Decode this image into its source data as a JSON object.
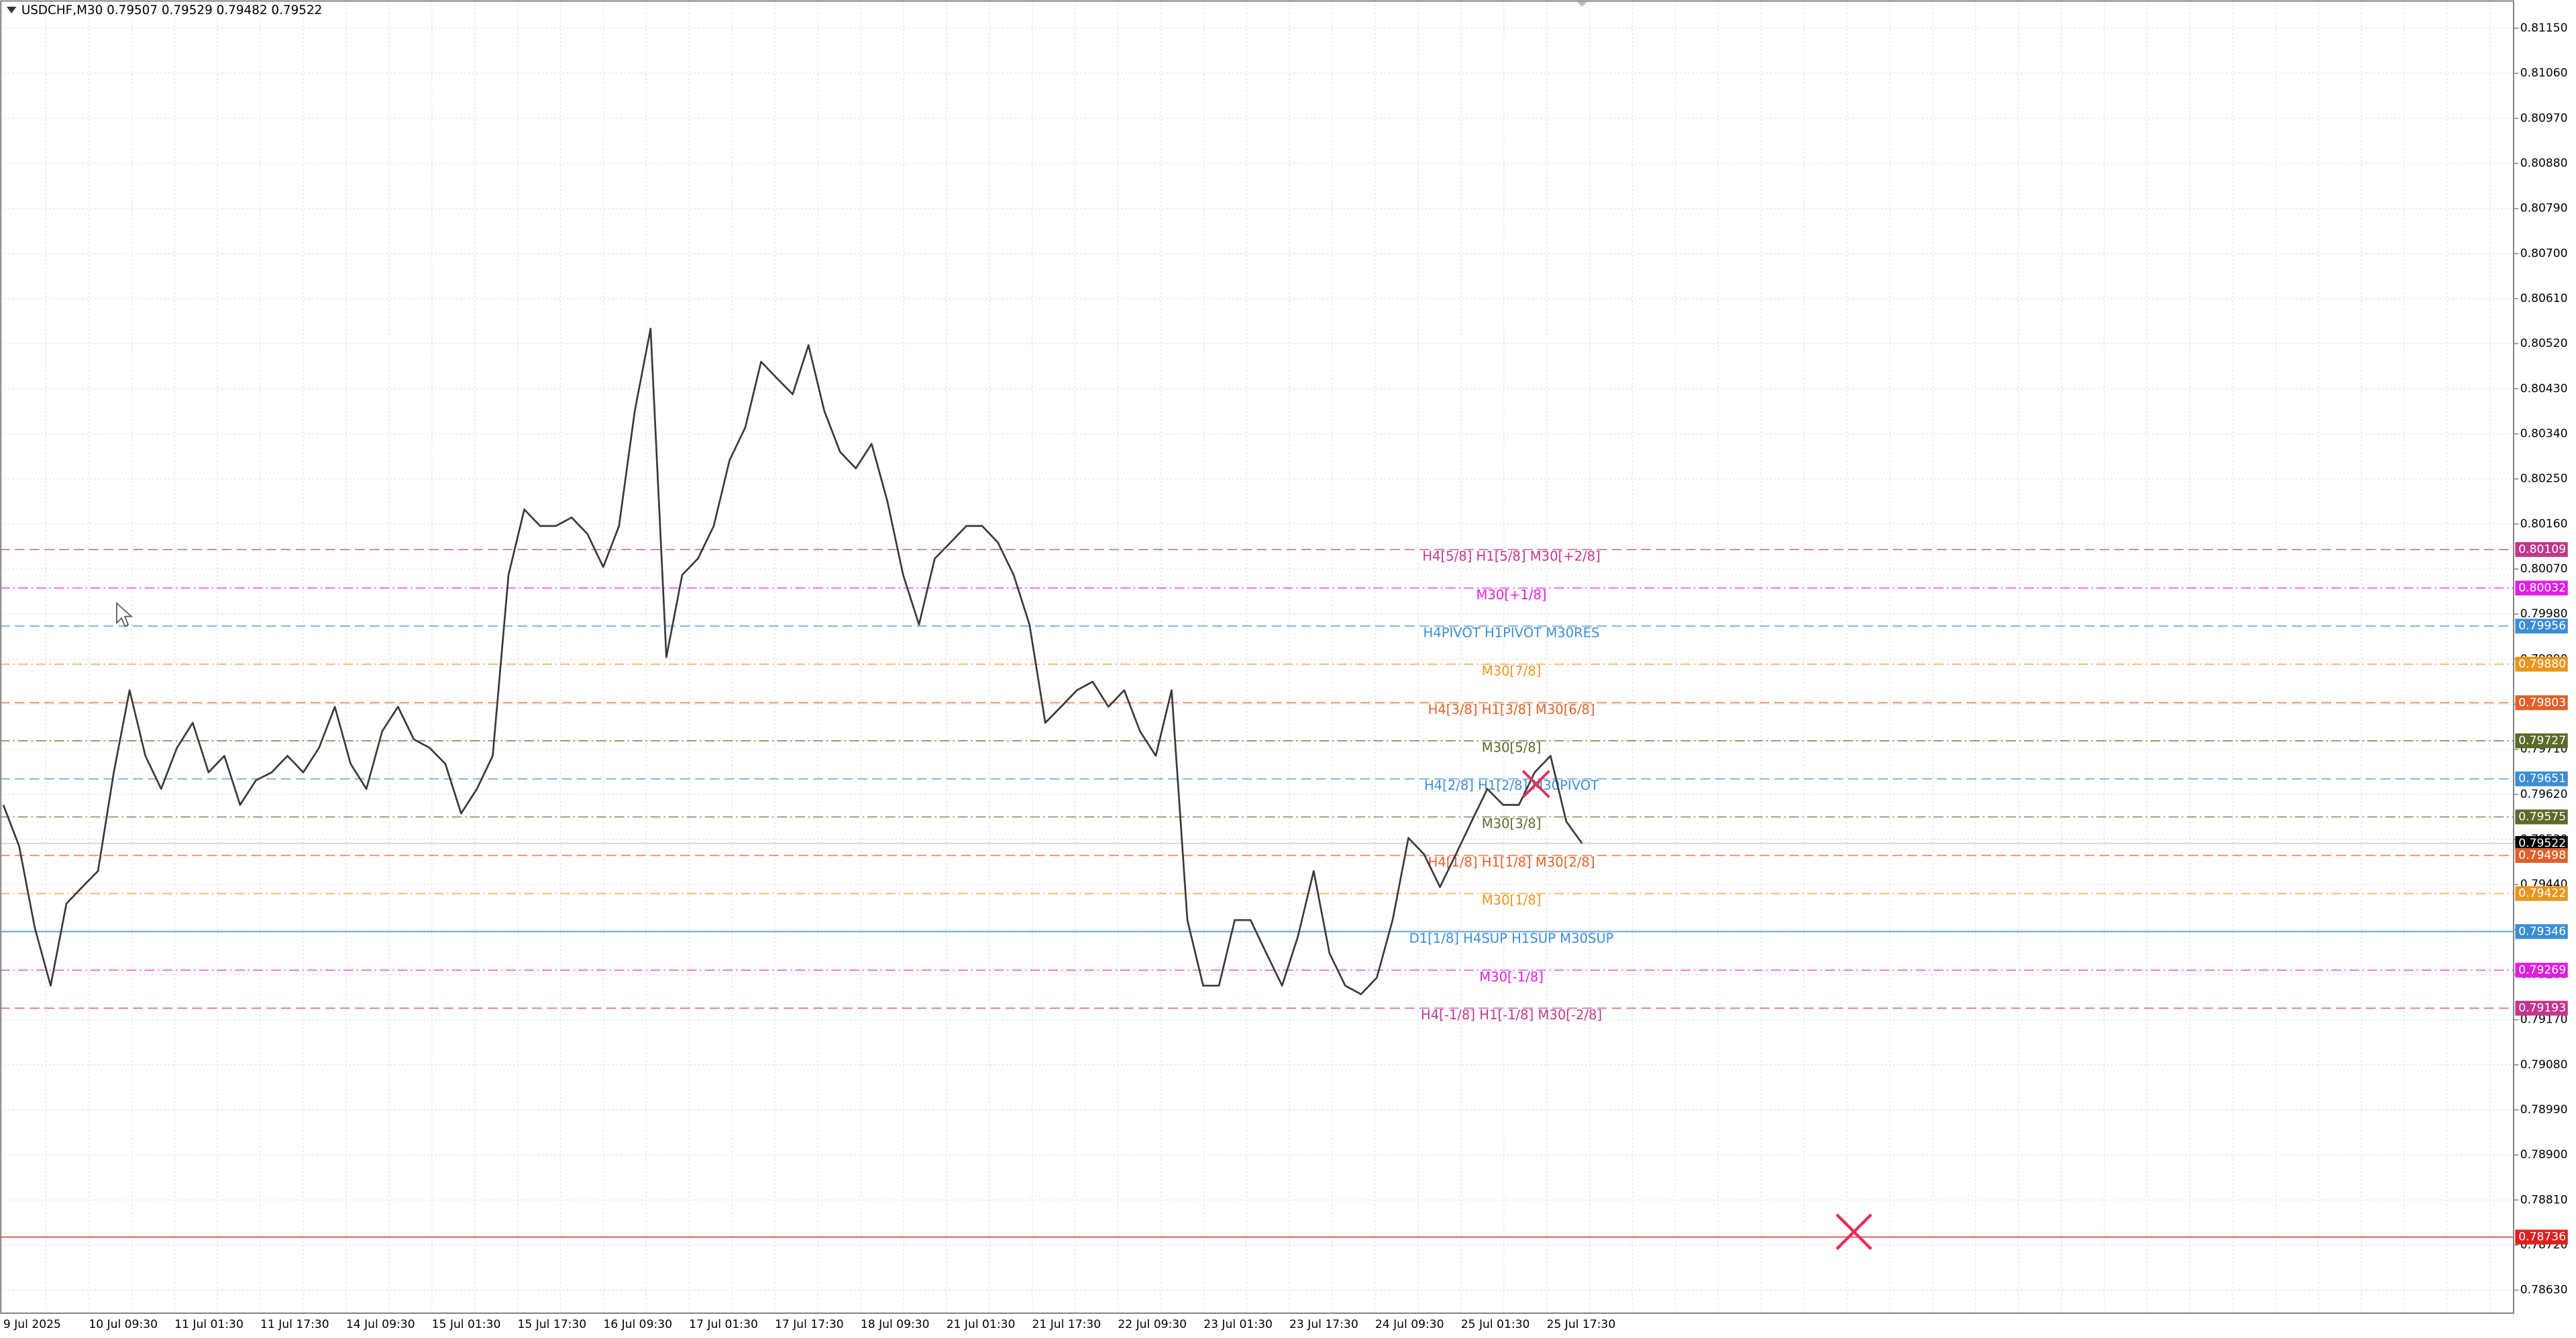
{
  "chart_data": {
    "type": "line",
    "title": "USDCHF,M30  0.79507 0.79529 0.79482 0.79522",
    "series": [
      {
        "name": "USDCHF",
        "color": "#3a3a3a",
        "values": [
          0.79599,
          0.79517,
          0.79353,
          0.79238,
          0.79402,
          0.79435,
          0.79467,
          0.79664,
          0.79828,
          0.79697,
          0.79631,
          0.79713,
          0.79763,
          0.79664,
          0.79697,
          0.79599,
          0.79648,
          0.79664,
          0.79697,
          0.79664,
          0.79713,
          0.79795,
          0.79681,
          0.79631,
          0.79746,
          0.79795,
          0.7973,
          0.79713,
          0.79681,
          0.79582,
          0.79631,
          0.79697,
          0.80058,
          0.80189,
          0.80156,
          0.80156,
          0.80173,
          0.8014,
          0.80074,
          0.80156,
          0.80386,
          0.8055,
          0.79894,
          0.80058,
          0.80091,
          0.80156,
          0.80287,
          0.80353,
          0.80484,
          0.80451,
          0.80419,
          0.80517,
          0.80386,
          0.80304,
          0.80271,
          0.8032,
          0.80205,
          0.80058,
          0.79959,
          0.80091,
          0.80123,
          0.80156,
          0.80156,
          0.80123,
          0.80058,
          0.79959,
          0.79763,
          0.79795,
          0.79828,
          0.79845,
          0.79795,
          0.79828,
          0.79746,
          0.79697,
          0.79828,
          0.79369,
          0.79238,
          0.79238,
          0.79369,
          0.79369,
          0.79303,
          0.79238,
          0.79336,
          0.79467,
          0.79303,
          0.79238,
          0.79221,
          0.79254,
          0.79369,
          0.79533,
          0.795,
          0.79435,
          0.795,
          0.79566,
          0.79631,
          0.79599,
          0.79599,
          0.79664,
          0.79697,
          0.79566,
          0.79522
        ]
      }
    ],
    "x_labels": [
      "9 Jul 2025",
      "10 Jul 09:30",
      "11 Jul 01:30",
      "11 Jul 17:30",
      "14 Jul 09:30",
      "15 Jul 01:30",
      "15 Jul 17:30",
      "16 Jul 09:30",
      "17 Jul 01:30",
      "17 Jul 17:30",
      "18 Jul 09:30",
      "21 Jul 01:30",
      "21 Jul 17:30",
      "22 Jul 09:30",
      "23 Jul 01:30",
      "23 Jul 17:30",
      "24 Jul 09:30",
      "25 Jul 01:30",
      "25 Jul 17:30"
    ],
    "ylim": [
      0.78584,
      0.81206
    ],
    "yticks": [
      {
        "value": 0.8115,
        "label": "0.81150"
      },
      {
        "value": 0.8106,
        "label": "0.81060"
      },
      {
        "value": 0.8097,
        "label": "0.80970"
      },
      {
        "value": 0.8088,
        "label": "0.80880"
      },
      {
        "value": 0.8079,
        "label": "0.80790"
      },
      {
        "value": 0.807,
        "label": "0.80700"
      },
      {
        "value": 0.8061,
        "label": "0.80610"
      },
      {
        "value": 0.8052,
        "label": "0.80520"
      },
      {
        "value": 0.8043,
        "label": "0.80430"
      },
      {
        "value": 0.8034,
        "label": "0.80340"
      },
      {
        "value": 0.8025,
        "label": "0.80250"
      },
      {
        "value": 0.8016,
        "label": "0.80160"
      },
      {
        "value": 0.8007,
        "label": "0.80070"
      },
      {
        "value": 0.7998,
        "label": "0.79980"
      },
      {
        "value": 0.7989,
        "label": "0.79890"
      },
      {
        "value": 0.798,
        "label": "0.79800"
      },
      {
        "value": 0.7971,
        "label": "0.79710"
      },
      {
        "value": 0.7962,
        "label": "0.79620"
      },
      {
        "value": 0.7953,
        "label": "0.79530"
      },
      {
        "value": 0.7944,
        "label": "0.79440"
      },
      {
        "value": 0.7935,
        "label": "0.79350"
      },
      {
        "value": 0.7926,
        "label": "0.79260"
      },
      {
        "value": 0.7917,
        "label": "0.79170"
      },
      {
        "value": 0.7908,
        "label": "0.79080"
      },
      {
        "value": 0.7899,
        "label": "0.78990"
      },
      {
        "value": 0.789,
        "label": "0.78900"
      },
      {
        "value": 0.7881,
        "label": "0.78810"
      },
      {
        "value": 0.7872,
        "label": "0.78720"
      },
      {
        "value": 0.7863,
        "label": "0.78630"
      }
    ],
    "grid": true,
    "levels": [
      {
        "label": "H4[5/8] H1[5/8] M30[+2/8]",
        "value": 0.80109,
        "value_label": "0.80109",
        "color": "#c2368d",
        "style": "dash"
      },
      {
        "label": "M30[+1/8]",
        "value": 0.80032,
        "value_label": "0.80032",
        "color": "#e01ee0",
        "style": "dashdot"
      },
      {
        "label": "H4PIVOT H1PIVOT M30RES",
        "value": 0.79956,
        "value_label": "0.79956",
        "color": "#3c8dd6",
        "style": "dash"
      },
      {
        "label": "M30[7/8]",
        "value": 0.7988,
        "value_label": "0.79880",
        "color": "#e8961e",
        "style": "dashdot"
      },
      {
        "label": "H4[3/8] H1[3/8] M30[6/8]",
        "value": 0.79803,
        "value_label": "0.79803",
        "color": "#e0602a",
        "style": "dash"
      },
      {
        "label": "M30[5/8]",
        "value": 0.79727,
        "value_label": "0.79727",
        "color": "#5b6b2a",
        "style": "dashdot"
      },
      {
        "label": "H4[2/8] H1[2/8] M30PIVOT",
        "value": 0.79651,
        "value_label": "0.79651",
        "color": "#3c8dd6",
        "style": "dash"
      },
      {
        "label": "M30[3/8]",
        "value": 0.79575,
        "value_label": "0.79575",
        "color": "#5b6b2a",
        "style": "dashdot"
      },
      {
        "value": 0.79522,
        "value_label": "0.79522",
        "color": "#000000",
        "style": "faint"
      },
      {
        "label": "H4[1/8] H1[1/8] M30[2/8]",
        "value": 0.79498,
        "value_label": "0.79498",
        "color": "#e0602a",
        "style": "dash"
      },
      {
        "label": "M30[1/8]",
        "value": 0.79422,
        "value_label": "0.79422",
        "color": "#e8961e",
        "style": "dashdot"
      },
      {
        "label": "D1[1/8] H4SUP H1SUP M30SUP",
        "value": 0.79346,
        "value_label": "0.79346",
        "color": "#3c8dd6",
        "style": "solid"
      },
      {
        "label": "M30[-1/8]",
        "value": 0.79269,
        "value_label": "0.79269",
        "color": "#e01ee0",
        "style": "dashdot"
      },
      {
        "label": "H4[-1/8] H1[-1/8] M30[-2/8]",
        "value": 0.79193,
        "value_label": "0.79193",
        "color": "#c2368d",
        "style": "dash"
      },
      {
        "value": 0.78736,
        "value_label": "0.78736",
        "color": "#e02020",
        "style": "solid"
      }
    ]
  }
}
